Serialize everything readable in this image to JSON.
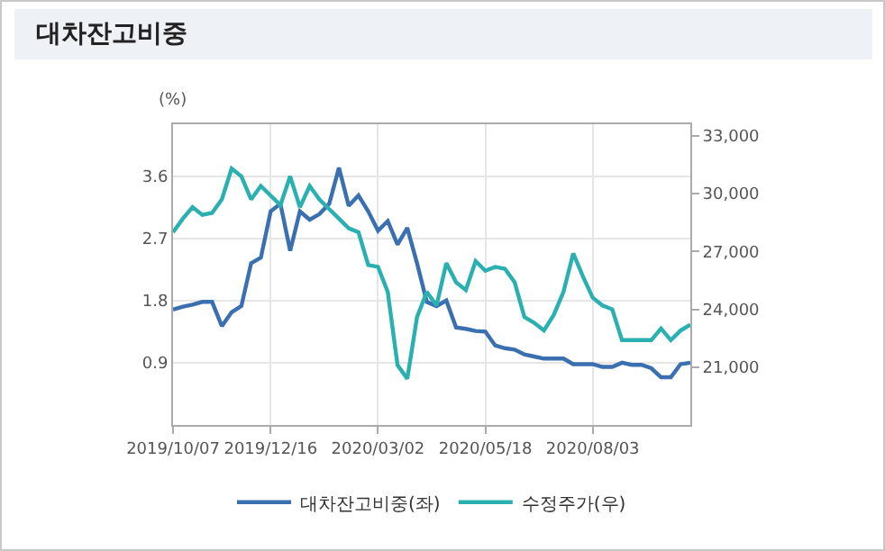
{
  "chart_data": {
    "type": "line",
    "title": "대차잔고비중",
    "ylabel": "(%)",
    "x": [
      "2019-10-07",
      "2019-10-14",
      "2019-10-21",
      "2019-10-28",
      "2019-11-04",
      "2019-11-11",
      "2019-11-18",
      "2019-11-25",
      "2019-12-02",
      "2019-12-09",
      "2019-12-16",
      "2019-12-23",
      "2019-12-30",
      "2020-01-06",
      "2020-01-13",
      "2020-01-20",
      "2020-01-27",
      "2020-02-03",
      "2020-02-10",
      "2020-02-17",
      "2020-02-24",
      "2020-03-02",
      "2020-03-09",
      "2020-03-16",
      "2020-03-23",
      "2020-03-30",
      "2020-04-06",
      "2020-04-13",
      "2020-04-20",
      "2020-04-27",
      "2020-05-04",
      "2020-05-11",
      "2020-05-18",
      "2020-05-25",
      "2020-06-01",
      "2020-06-08",
      "2020-06-15",
      "2020-06-22",
      "2020-06-29",
      "2020-07-06",
      "2020-07-13",
      "2020-07-20",
      "2020-07-27",
      "2020-08-03",
      "2020-08-10",
      "2020-08-17",
      "2020-08-24",
      "2020-08-31",
      "2020-09-07",
      "2020-09-14",
      "2020-09-21",
      "2020-09-28",
      "2020-10-05",
      "2020-10-12"
    ],
    "series": [
      {
        "name": "대차잔고비중(좌)",
        "color": "#3a6fb0",
        "values": [
          1.67,
          1.71,
          1.74,
          1.78,
          1.78,
          1.43,
          1.63,
          1.72,
          2.34,
          2.42,
          3.09,
          3.2,
          2.52,
          3.09,
          2.97,
          3.05,
          3.2,
          3.72,
          3.17,
          3.32,
          3.09,
          2.81,
          2.95,
          2.61,
          2.85,
          2.34,
          1.78,
          1.72,
          1.8,
          1.41,
          1.39,
          1.36,
          1.35,
          1.15,
          1.11,
          1.09,
          1.02,
          0.99,
          0.96,
          0.96,
          0.96,
          0.88,
          0.88,
          0.88,
          0.84,
          0.84,
          0.9,
          0.87,
          0.87,
          0.82,
          0.69,
          0.69,
          0.88,
          0.9
        ]
      },
      {
        "name": "수정주가(우)",
        "color": "#2ab0b0",
        "axis": "y2",
        "values": [
          28000,
          28700,
          29300,
          28900,
          29000,
          29700,
          31300,
          30900,
          29700,
          30400,
          29900,
          29400,
          30900,
          29300,
          30400,
          29700,
          29200,
          28700,
          28200,
          28000,
          26300,
          26200,
          24900,
          21100,
          20400,
          23600,
          24900,
          24200,
          26400,
          25400,
          25000,
          26500,
          26000,
          26200,
          26100,
          25400,
          23600,
          23300,
          22900,
          23700,
          24900,
          26900,
          25700,
          24600,
          24200,
          24000,
          22400,
          22400,
          22400,
          22400,
          23000,
          22400,
          22900,
          23200
        ]
      }
    ],
    "xlim": [
      "2019-10-07",
      "2020-10-12"
    ],
    "xticks": [
      {
        "value": "2019-10-07",
        "label": "2019/10/07"
      },
      {
        "value": "2019-12-16",
        "label": "2019/12/16"
      },
      {
        "value": "2020-03-02",
        "label": "2020/03/02"
      },
      {
        "value": "2020-05-18",
        "label": "2020/05/18"
      },
      {
        "value": "2020-08-03",
        "label": "2020/08/03"
      }
    ],
    "ylim": [
      0,
      4.35
    ],
    "yticks": [
      0.9,
      1.8,
      2.7,
      3.6
    ],
    "y2lim": [
      18000,
      33600
    ],
    "y2ticks": [
      {
        "value": 21000,
        "label": "21,000"
      },
      {
        "value": 24000,
        "label": "24,000"
      },
      {
        "value": 27000,
        "label": "27,000"
      },
      {
        "value": 30000,
        "label": "30,000"
      },
      {
        "value": 33000,
        "label": "33,000"
      }
    ],
    "grid": true,
    "legend": "bottom",
    "marker": "none",
    "line_style": "solid"
  }
}
